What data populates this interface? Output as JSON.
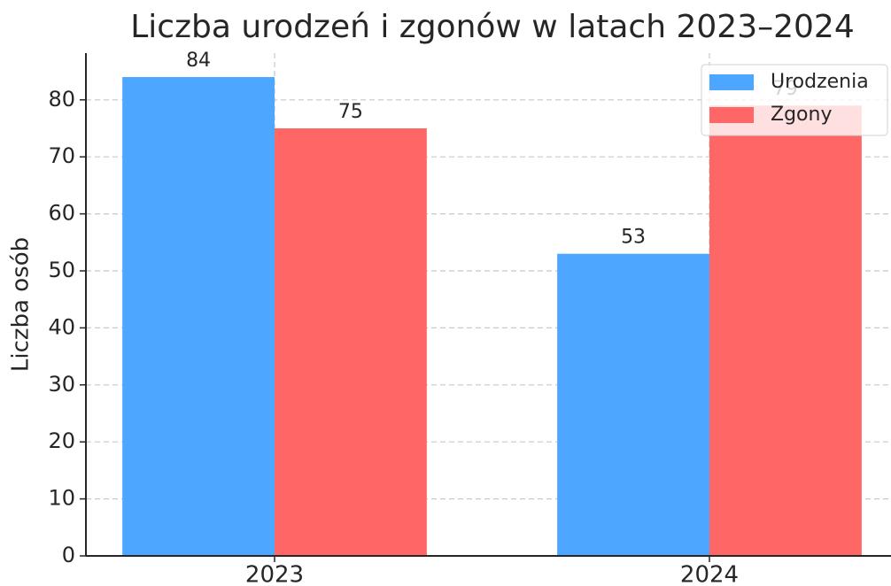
{
  "chart_data": {
    "type": "bar",
    "title": "Liczba urodzeń i zgonów w latach 2023–2024",
    "ylabel": "Liczba osób",
    "categories": [
      "2023",
      "2024"
    ],
    "series": [
      {
        "name": "Urodzenia",
        "color": "#4da6ff",
        "values": [
          84,
          53
        ]
      },
      {
        "name": "Zgony",
        "color": "#ff6666",
        "values": [
          75,
          79
        ]
      }
    ],
    "ylim": [
      0,
      88.2
    ],
    "yticks": [
      0,
      10,
      20,
      30,
      40,
      50,
      60,
      70,
      80
    ],
    "grid": true,
    "legend": "upper right"
  }
}
